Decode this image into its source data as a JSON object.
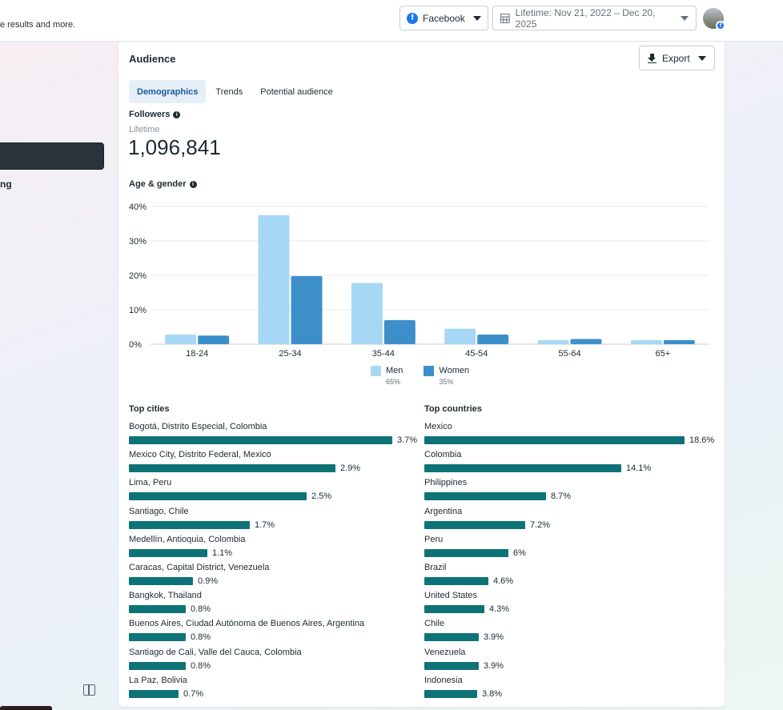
{
  "topbar": {
    "subtitle": "e results and more.",
    "platform": {
      "label": "Facebook",
      "icon": "facebook-icon"
    },
    "date_range": {
      "label": "Lifetime: Nov 21, 2022 – Dec 20, 2025",
      "icon": "calendar-icon"
    }
  },
  "sidebar": {
    "partial_label": "ng"
  },
  "audience": {
    "title": "Audience",
    "export_label": "Export",
    "tabs": [
      {
        "label": "Demographics",
        "active": true
      },
      {
        "label": "Trends",
        "active": false
      },
      {
        "label": "Potential audience",
        "active": false
      }
    ],
    "followers": {
      "label": "Followers",
      "period": "Lifetime",
      "value": "1,096,841"
    },
    "age_gender_label": "Age & gender",
    "legend": [
      {
        "label": "Men",
        "pct": "65%",
        "color": "#a6d8f5"
      },
      {
        "label": "Women",
        "pct": "35%",
        "color": "#3d8fca"
      }
    ]
  },
  "chart_data": {
    "type": "bar",
    "categories": [
      "18-24",
      "25-34",
      "35-44",
      "45-54",
      "55-64",
      "65+"
    ],
    "series": [
      {
        "name": "Men",
        "values": [
          2.8,
          37.5,
          17.8,
          4.5,
          1.2,
          1.2
        ]
      },
      {
        "name": "Women",
        "values": [
          2.5,
          19.8,
          7.0,
          2.8,
          1.5,
          1.2
        ]
      }
    ],
    "yticks": [
      "0%",
      "10%",
      "20%",
      "30%",
      "40%"
    ],
    "ylim": [
      0,
      40
    ],
    "grid": true,
    "legend_position": "bottom"
  },
  "top_cities": {
    "title": "Top cities",
    "items": [
      {
        "name": "Bogotá, Distrito Especial, Colombia",
        "pct": "3.7%",
        "value": 3.7
      },
      {
        "name": "Mexico City, Distrito Federal, Mexico",
        "pct": "2.9%",
        "value": 2.9
      },
      {
        "name": "Lima, Peru",
        "pct": "2.5%",
        "value": 2.5
      },
      {
        "name": "Santiago, Chile",
        "pct": "1.7%",
        "value": 1.7
      },
      {
        "name": "Medellín, Antioquia, Colombia",
        "pct": "1.1%",
        "value": 1.1
      },
      {
        "name": "Caracas, Capital District, Venezuela",
        "pct": "0.9%",
        "value": 0.9
      },
      {
        "name": "Bangkok, Thailand",
        "pct": "0.8%",
        "value": 0.8
      },
      {
        "name": "Buenos Aires, Ciudad Autónoma de Buenos Aires, Argentina",
        "pct": "0.8%",
        "value": 0.8
      },
      {
        "name": "Santiago de Cali, Valle del Cauca, Colombia",
        "pct": "0.8%",
        "value": 0.8
      },
      {
        "name": "La Paz, Bolivia",
        "pct": "0.7%",
        "value": 0.7
      }
    ]
  },
  "top_countries": {
    "title": "Top countries",
    "items": [
      {
        "name": "Mexico",
        "pct": "18.6%",
        "value": 18.6
      },
      {
        "name": "Colombia",
        "pct": "14.1%",
        "value": 14.1
      },
      {
        "name": "Philippines",
        "pct": "8.7%",
        "value": 8.7
      },
      {
        "name": "Argentina",
        "pct": "7.2%",
        "value": 7.2
      },
      {
        "name": "Peru",
        "pct": "6%",
        "value": 6
      },
      {
        "name": "Brazil",
        "pct": "4.6%",
        "value": 4.6
      },
      {
        "name": "United States",
        "pct": "4.3%",
        "value": 4.3
      },
      {
        "name": "Chile",
        "pct": "3.9%",
        "value": 3.9
      },
      {
        "name": "Venezuela",
        "pct": "3.9%",
        "value": 3.9
      },
      {
        "name": "Indonesia",
        "pct": "3.8%",
        "value": 3.8
      }
    ]
  },
  "colors": {
    "accent_teal": "#0e7376",
    "men": "#a6d8f5",
    "women": "#3d8fca"
  }
}
